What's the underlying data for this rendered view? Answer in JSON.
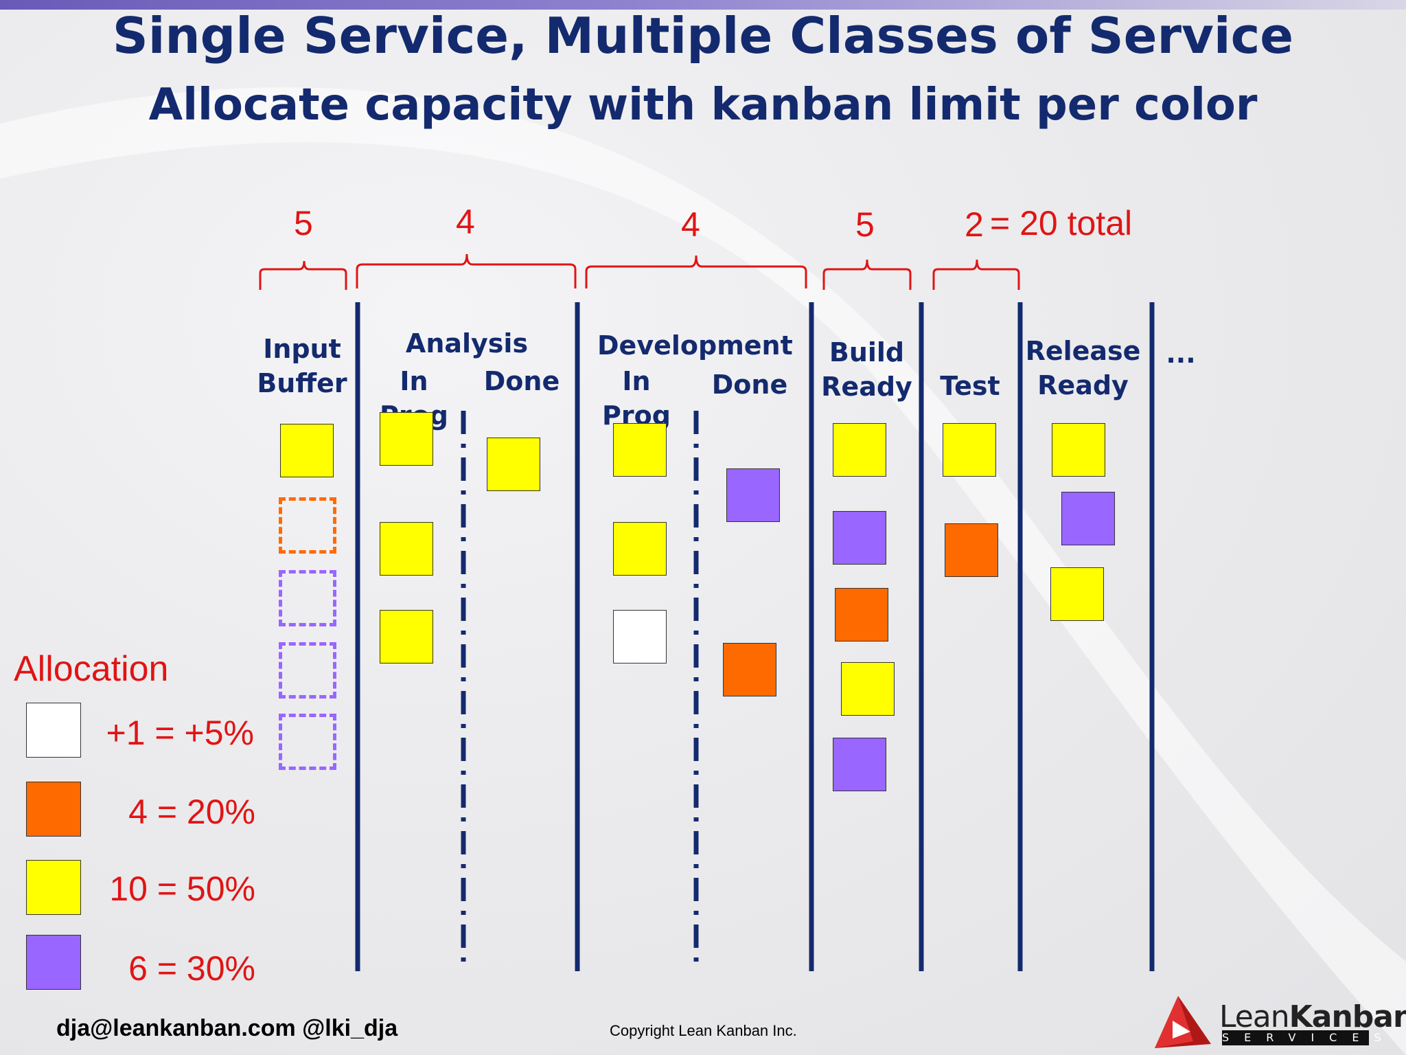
{
  "slide": {
    "title": "Single Service, Multiple Classes of Service",
    "subtitle": "Allocate capacity with kanban limit per color"
  },
  "limits": [
    {
      "text": "5"
    },
    {
      "text": "4"
    },
    {
      "text": "4"
    },
    {
      "text": "5"
    },
    {
      "text": "2"
    },
    {
      "text": "= 20 total"
    }
  ],
  "columns": {
    "input_buffer": "Input\nBuffer",
    "analysis": "Analysis",
    "analysis_in_prog": "In Prog",
    "analysis_done": "Done",
    "development": "Development",
    "dev_in_prog": "In Prog",
    "dev_done": "Done",
    "build_ready": "Build\nReady",
    "test": "Test",
    "release_ready": "Release\nReady",
    "more": "..."
  },
  "colors": {
    "white": "#ffffff",
    "orange": "#ff6a00",
    "yellow": "#ffff00",
    "purple": "#9966ff",
    "line": "#142a6e",
    "red_text": "#e01414"
  },
  "legend": {
    "title": "Allocation",
    "items": [
      {
        "color": "white",
        "label": "+1 = +5%"
      },
      {
        "color": "orange",
        "label": "4 = 20%"
      },
      {
        "color": "yellow",
        "label": "10 = 50%"
      },
      {
        "color": "purple",
        "label": "6 = 30%"
      }
    ]
  },
  "cards": {
    "input_buffer": [
      "yellow",
      "orange-empty",
      "purple-empty",
      "purple-empty",
      "purple-empty"
    ],
    "analysis_in_prog": [
      "yellow",
      "yellow",
      "yellow"
    ],
    "analysis_done": [
      "yellow"
    ],
    "dev_in_prog": [
      "yellow",
      "yellow",
      "white"
    ],
    "dev_done": [
      "purple",
      "orange"
    ],
    "build_ready": [
      "yellow",
      "purple",
      "orange",
      "yellow",
      "purple"
    ],
    "test": [
      "yellow",
      "orange"
    ],
    "release_ready": [
      "yellow",
      "purple",
      "yellow"
    ]
  },
  "footer": {
    "contact": "dja@leankanban.com @lki_dja",
    "copyright": "Copyright Lean Kanban  Inc.",
    "logo_lean": "Lean",
    "logo_kanban": "Kanban",
    "logo_services": "SERVICES"
  }
}
